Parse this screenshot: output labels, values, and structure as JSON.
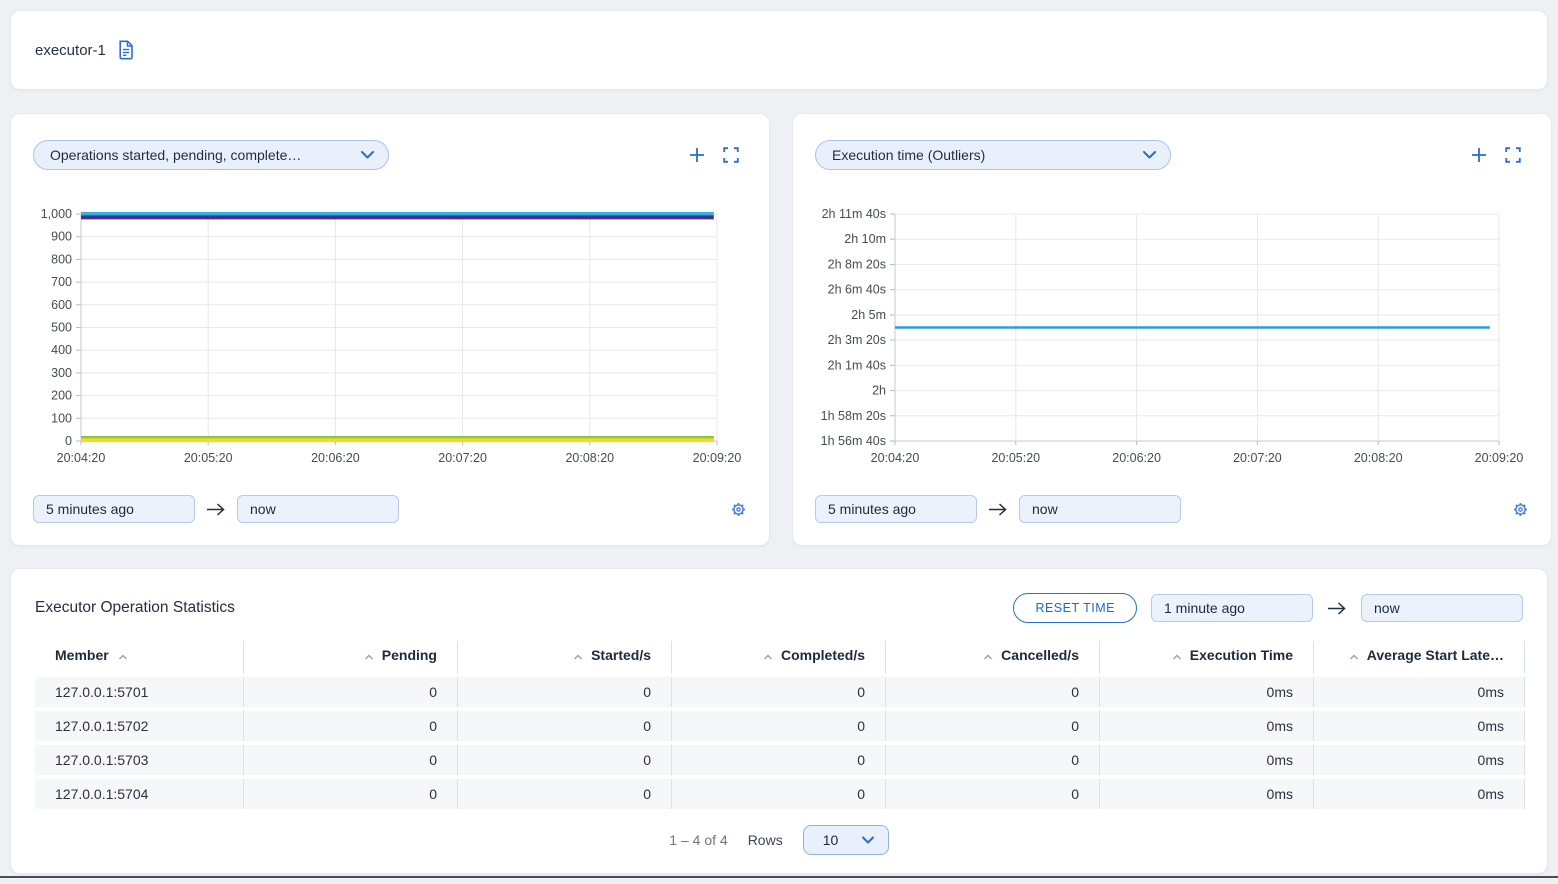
{
  "header": {
    "title": "executor-1"
  },
  "left_panel": {
    "selector_label": "Operations started, pending, complete…",
    "time_from": "5 minutes ago",
    "time_to": "now"
  },
  "right_panel": {
    "selector_label": "Execution time (Outliers)",
    "time_from": "5 minutes ago",
    "time_to": "now"
  },
  "stats_panel": {
    "title": "Executor Operation Statistics",
    "reset_button_label": "RESET TIME",
    "time_from": "1 minute ago",
    "time_to": "now",
    "table": {
      "columns": [
        {
          "label": "Member",
          "align": "left"
        },
        {
          "label": "Pending",
          "align": "right"
        },
        {
          "label": "Started/s",
          "align": "right"
        },
        {
          "label": "Completed/s",
          "align": "right"
        },
        {
          "label": "Cancelled/s",
          "align": "right"
        },
        {
          "label": "Execution Time",
          "align": "right"
        },
        {
          "label": "Average Start Late…",
          "align": "right"
        }
      ],
      "rows": [
        [
          "127.0.0.1:5701",
          "0",
          "0",
          "0",
          "0",
          "0ms",
          "0ms"
        ],
        [
          "127.0.0.1:5702",
          "0",
          "0",
          "0",
          "0",
          "0ms",
          "0ms"
        ],
        [
          "127.0.0.1:5703",
          "0",
          "0",
          "0",
          "0",
          "0ms",
          "0ms"
        ],
        [
          "127.0.0.1:5704",
          "0",
          "0",
          "0",
          "0",
          "0ms",
          "0ms"
        ]
      ]
    },
    "pagination": {
      "range": "1 – 4 of 4",
      "rows_label": "Rows",
      "rows_per_page": "10"
    }
  },
  "colors": {
    "accent_blue": "#2a6fd0",
    "input_bg": "#ecf2fc",
    "grid": "#e8e8e8",
    "axis": "#c6c9cd"
  },
  "chart_data": [
    {
      "type": "line",
      "title": "Operations started, pending, complete…",
      "xlabel": "",
      "ylabel": "",
      "x": [
        "20:04:20",
        "20:05:20",
        "20:06:20",
        "20:07:20",
        "20:08:20",
        "20:09:20"
      ],
      "y_ticks": [
        {
          "label": "1,000",
          "value": 1000
        },
        {
          "label": "900",
          "value": 900
        },
        {
          "label": "800",
          "value": 800
        },
        {
          "label": "700",
          "value": 700
        },
        {
          "label": "600",
          "value": 600
        },
        {
          "label": "500",
          "value": 500
        },
        {
          "label": "400",
          "value": 400
        },
        {
          "label": "300",
          "value": 300
        },
        {
          "label": "200",
          "value": 200
        },
        {
          "label": "100",
          "value": 100
        },
        {
          "label": "0",
          "value": 0
        }
      ],
      "ylim": [
        0,
        1000
      ],
      "grid": true,
      "legend": "none",
      "line_width": 4,
      "series": [
        {
          "name": "line-1",
          "color": "#35b2e4",
          "values": [
            1000,
            1000,
            1000,
            1000,
            1000,
            1000
          ],
          "x_end": 0.995
        },
        {
          "name": "line-2",
          "color": "#44318f",
          "values": [
            985,
            985,
            985,
            985,
            985,
            985
          ],
          "x_end": 0.995
        },
        {
          "name": "line-3",
          "color": "#8cc63e",
          "values": [
            13,
            13,
            13,
            13,
            13,
            13
          ],
          "x_end": 0.995
        },
        {
          "name": "line-4",
          "color": "#efd93a",
          "values": [
            3,
            3,
            3,
            3,
            3,
            3
          ],
          "x_end": 0.995
        }
      ]
    },
    {
      "type": "line",
      "title": "Execution time (Outliers)",
      "xlabel": "",
      "ylabel": "",
      "x": [
        "20:04:20",
        "20:05:20",
        "20:06:20",
        "20:07:20",
        "20:08:20",
        "20:09:20"
      ],
      "y_ticks": [
        {
          "label": "2h 11m 40s",
          "value": 7900
        },
        {
          "label": "2h 10m",
          "value": 7800
        },
        {
          "label": "2h 8m 20s",
          "value": 7700
        },
        {
          "label": "2h 6m 40s",
          "value": 7600
        },
        {
          "label": "2h 5m",
          "value": 7500
        },
        {
          "label": "2h 3m 20s",
          "value": 7400
        },
        {
          "label": "2h 1m 40s",
          "value": 7300
        },
        {
          "label": "2h",
          "value": 7200
        },
        {
          "label": "1h 58m 20s",
          "value": 7100
        },
        {
          "label": "1h 56m 40s",
          "value": 7000
        }
      ],
      "ylim": [
        7000,
        7900
      ],
      "grid": true,
      "legend": "none",
      "line_width": 2.5,
      "series": [
        {
          "name": "execution-time",
          "color": "#2b9ed8",
          "values": [
            7450,
            7450,
            7450,
            7450,
            7450,
            7450
          ],
          "x_end": 0.985
        }
      ]
    }
  ]
}
